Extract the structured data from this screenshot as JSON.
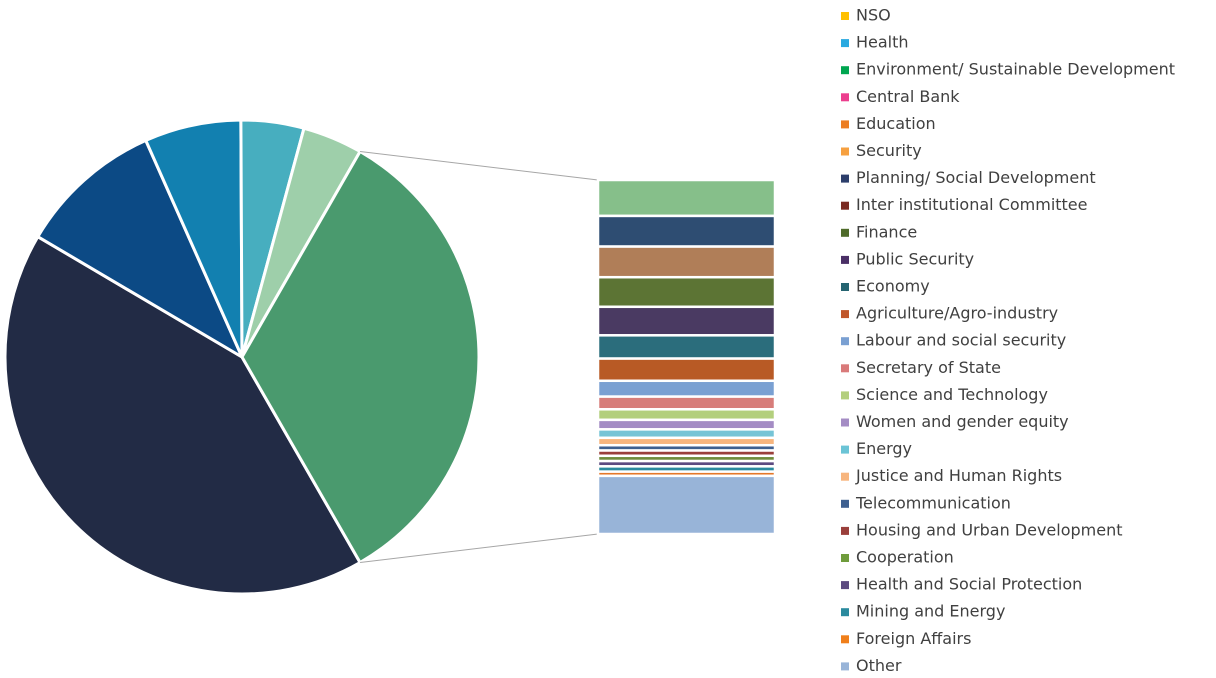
{
  "chart_data": {
    "type": "bar_of_pie",
    "categories": [
      "NSO",
      "Health",
      "Environment/ Sustainable Development",
      "Central Bank",
      "Education",
      "Security",
      "Planning/ Social Development",
      "Inter institutional Committee",
      "Finance",
      "Public Security",
      "Economy",
      "Agriculture/Agro-industry",
      "Labour and social security",
      "Secretary of State",
      "Science and Technology",
      "Women and gender equity",
      "Energy",
      "Justice and Human Rights",
      "Telecommunication",
      "Housing and Urban Development",
      "Cooperation",
      "Health and Social Protection",
      "Mining and Energy",
      "Foreign Affairs",
      "Other"
    ],
    "values": [
      41.9,
      9.9,
      6.6,
      4.3,
      4.1,
      3.4,
      2.9,
      2.9,
      2.8,
      2.7,
      2.2,
      2.1,
      1.5,
      1.2,
      1.0,
      0.9,
      0.8,
      0.7,
      0.5,
      0.5,
      0.5,
      0.5,
      0.5,
      0.4,
      5.5
    ],
    "pie_slices": 5,
    "colors": [
      "#222b45",
      "#0c4a85",
      "#1280b0",
      "#47aebf",
      "#9ecfaa",
      "#86bf8a",
      "#2e4d72",
      "#b07e58",
      "#5c7434",
      "#4a3a62",
      "#2b6d7c",
      "#b85a25",
      "#7aa0d2",
      "#d77d7a",
      "#b3cf7d",
      "#a48cc4",
      "#76c4d6",
      "#f7b57e",
      "#3e5f8f",
      "#9a3f3b",
      "#6f8c3c",
      "#5c4a80",
      "#2a8a9e",
      "#e5782a",
      "#98b4d8"
    ],
    "group_color": "#4a9a6e",
    "legend_colors": [
      "#ffc000",
      "#29a9e0",
      "#00a650",
      "#ec3e8e",
      "#ec7d22",
      "#f6a040",
      "#2c3e6b",
      "#7a2a22",
      "#4f6b2a",
      "#4a2f66",
      "#256471",
      "#c0562a",
      "#7aa0d2",
      "#d97a7a",
      "#b3cf7d",
      "#a48cc4",
      "#6bc4d6",
      "#f7b57e",
      "#3e5f8f",
      "#9a3f3b",
      "#6f9c3c",
      "#5c4a80",
      "#2a8a9e",
      "#f07f1a",
      "#98b4d8"
    ],
    "legend": "right"
  }
}
